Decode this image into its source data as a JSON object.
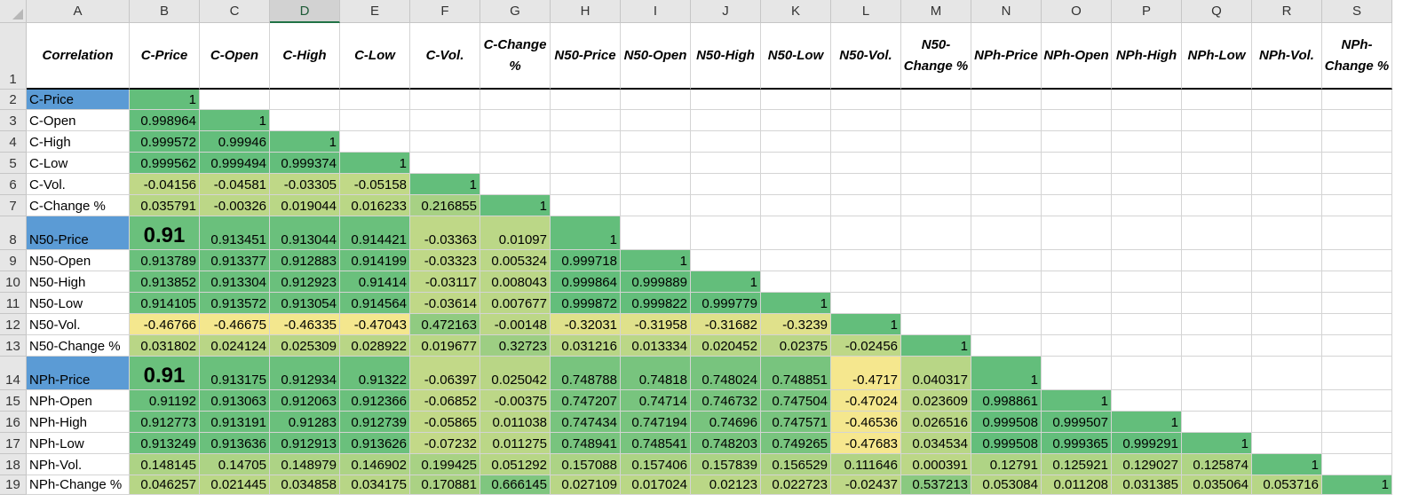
{
  "columns": [
    "A",
    "B",
    "C",
    "D",
    "E",
    "F",
    "G",
    "H",
    "I",
    "J",
    "K",
    "L",
    "M",
    "N",
    "O",
    "P",
    "Q",
    "R",
    "S"
  ],
  "selected_column": "D",
  "row_numbers": [
    "1",
    "2",
    "3",
    "4",
    "5",
    "6",
    "7",
    "8",
    "9",
    "10",
    "11",
    "12",
    "13",
    "14",
    "15",
    "16",
    "17",
    "18",
    "19"
  ],
  "corner_label": "Correlation",
  "headers": [
    "C-Price",
    "C-Open",
    "C-High",
    "C-Low",
    "C-Vol.",
    "C-Change %",
    "N50-Price",
    "N50-Open",
    "N50-High",
    "N50-Low",
    "N50-Vol.",
    "N50-Change %",
    "NPh-Price",
    "NPh-Open",
    "NPh-High",
    "NPh-Low",
    "NPh-Vol.",
    "NPh-Change %"
  ],
  "rows": [
    {
      "label": "C-Price",
      "highlight": true,
      "values": [
        "1"
      ]
    },
    {
      "label": "C-Open",
      "values": [
        "0.998964",
        "1"
      ]
    },
    {
      "label": "C-High",
      "values": [
        "0.999572",
        "0.99946",
        "1"
      ]
    },
    {
      "label": "C-Low",
      "values": [
        "0.999562",
        "0.999494",
        "0.999374",
        "1"
      ]
    },
    {
      "label": "C-Vol.",
      "values": [
        "-0.04156",
        "-0.04581",
        "-0.03305",
        "-0.05158",
        "1"
      ]
    },
    {
      "label": "C-Change %",
      "values": [
        "0.035791",
        "-0.00326",
        "0.019044",
        "0.016233",
        "0.216855",
        "1"
      ]
    },
    {
      "label": "N50-Price",
      "highlight": true,
      "values": [
        "0.91",
        "0.913451",
        "0.913044",
        "0.914421",
        "-0.03363",
        "0.01097",
        "1"
      ]
    },
    {
      "label": "N50-Open",
      "values": [
        "0.913789",
        "0.913377",
        "0.912883",
        "0.914199",
        "-0.03323",
        "0.005324",
        "0.999718",
        "1"
      ]
    },
    {
      "label": "N50-High",
      "values": [
        "0.913852",
        "0.913304",
        "0.912923",
        "0.91414",
        "-0.03117",
        "0.008043",
        "0.999864",
        "0.999889",
        "1"
      ]
    },
    {
      "label": "N50-Low",
      "values": [
        "0.914105",
        "0.913572",
        "0.913054",
        "0.914564",
        "-0.03614",
        "0.007677",
        "0.999872",
        "0.999822",
        "0.999779",
        "1"
      ]
    },
    {
      "label": "N50-Vol.",
      "values": [
        "-0.46766",
        "-0.46675",
        "-0.46335",
        "-0.47043",
        "0.472163",
        "-0.00148",
        "-0.32031",
        "-0.31958",
        "-0.31682",
        "-0.3239",
        "1"
      ]
    },
    {
      "label": "N50-Change %",
      "values": [
        "0.031802",
        "0.024124",
        "0.025309",
        "0.028922",
        "0.019677",
        "0.32723",
        "0.031216",
        "0.013334",
        "0.020452",
        "0.02375",
        "-0.02456",
        "1"
      ]
    },
    {
      "label": "NPh-Price",
      "highlight": true,
      "values": [
        "0.91",
        "0.913175",
        "0.912934",
        "0.91322",
        "-0.06397",
        "0.025042",
        "0.748788",
        "0.74818",
        "0.748024",
        "0.748851",
        "-0.4717",
        "0.040317",
        "1"
      ]
    },
    {
      "label": "NPh-Open",
      "values": [
        "0.91192",
        "0.913063",
        "0.912063",
        "0.912366",
        "-0.06852",
        "-0.00375",
        "0.747207",
        "0.74714",
        "0.746732",
        "0.747504",
        "-0.47024",
        "0.023609",
        "0.998861",
        "1"
      ]
    },
    {
      "label": "NPh-High",
      "values": [
        "0.912773",
        "0.913191",
        "0.91283",
        "0.912739",
        "-0.05865",
        "0.011038",
        "0.747434",
        "0.747194",
        "0.74696",
        "0.747571",
        "-0.46536",
        "0.026516",
        "0.999508",
        "0.999507",
        "1"
      ]
    },
    {
      "label": "NPh-Low",
      "values": [
        "0.913249",
        "0.913636",
        "0.912913",
        "0.913626",
        "-0.07232",
        "0.011275",
        "0.748941",
        "0.748541",
        "0.748203",
        "0.749265",
        "-0.47683",
        "0.034534",
        "0.999508",
        "0.999365",
        "0.999291",
        "1"
      ]
    },
    {
      "label": "NPh-Vol.",
      "values": [
        "0.148145",
        "0.14705",
        "0.148979",
        "0.146902",
        "0.199425",
        "0.051292",
        "0.157088",
        "0.157406",
        "0.157839",
        "0.156529",
        "0.111646",
        "0.000391",
        "0.12791",
        "0.125921",
        "0.129027",
        "0.125874",
        "1"
      ]
    },
    {
      "label": "NPh-Change %",
      "values": [
        "0.046257",
        "0.021445",
        "0.034858",
        "0.034175",
        "0.170881",
        "0.666145",
        "0.027109",
        "0.017024",
        "0.02123",
        "0.022723",
        "-0.02437",
        "0.537213",
        "0.053084",
        "0.011208",
        "0.031385",
        "0.035064",
        "0.053716",
        "1"
      ]
    }
  ],
  "colors": {
    "scale_low": "#fbe98f",
    "scale_high": "#63be7b",
    "label_highlight": "#5b9bd5"
  }
}
